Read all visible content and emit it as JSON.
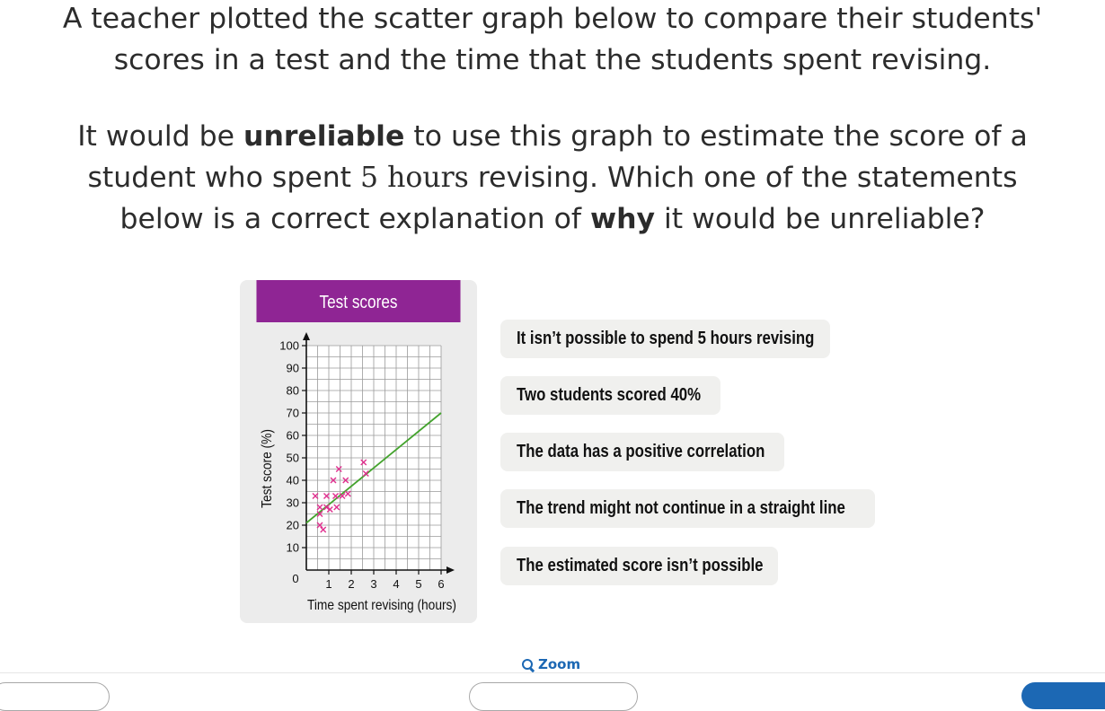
{
  "question": {
    "line1": "A teacher plotted the scatter graph below to compare their students'",
    "line2": "scores in a test and the time that the students spent revising.",
    "p2_a": "It would be ",
    "p2_b": "unreliable",
    "p2_c": " to use this graph to estimate the score of a",
    "p2_d": "student who spent ",
    "p2_e": "5 hours",
    "p2_f": " revising. Which one of the statements",
    "p2_g": "below is a correct explanation of ",
    "p2_h": "why",
    "p2_i": " it would be unreliable?"
  },
  "card": {
    "title": "Test scores"
  },
  "chart_data": {
    "type": "scatter",
    "title": "Test scores",
    "xlabel": "Time spent revising (hours)",
    "ylabel": "Test score (%)",
    "xlim": [
      0,
      6
    ],
    "ylim": [
      0,
      100
    ],
    "xticks": [
      1,
      2,
      3,
      4,
      5,
      6
    ],
    "yticks": [
      10,
      20,
      30,
      40,
      50,
      60,
      70,
      80,
      90,
      100
    ],
    "origin_label": "0",
    "grid": true,
    "marker": "x",
    "marker_color": "#e0308f",
    "trend_color": "#44a32e",
    "points": [
      [
        0.4,
        33
      ],
      [
        0.6,
        28
      ],
      [
        0.6,
        25
      ],
      [
        0.6,
        20
      ],
      [
        0.75,
        18
      ],
      [
        0.9,
        33
      ],
      [
        0.9,
        28
      ],
      [
        1.05,
        27
      ],
      [
        1.2,
        40
      ],
      [
        1.3,
        33
      ],
      [
        1.35,
        28
      ],
      [
        1.45,
        45
      ],
      [
        1.6,
        33
      ],
      [
        1.75,
        40
      ],
      [
        1.85,
        34
      ],
      [
        2.55,
        48
      ],
      [
        2.65,
        43
      ]
    ],
    "trend_line": [
      [
        0,
        21
      ],
      [
        6,
        70
      ]
    ]
  },
  "options": [
    "It isn’t possible to spend 5 hours revising",
    "Two students scored 40%",
    "The data has a positive correlation",
    "The trend might not continue in a straight line",
    "The estimated score isn’t possible"
  ],
  "toolbar": {
    "zoom_label": "Zoom"
  },
  "colors": {
    "accent": "#8f2594",
    "link": "#1c68b4"
  }
}
